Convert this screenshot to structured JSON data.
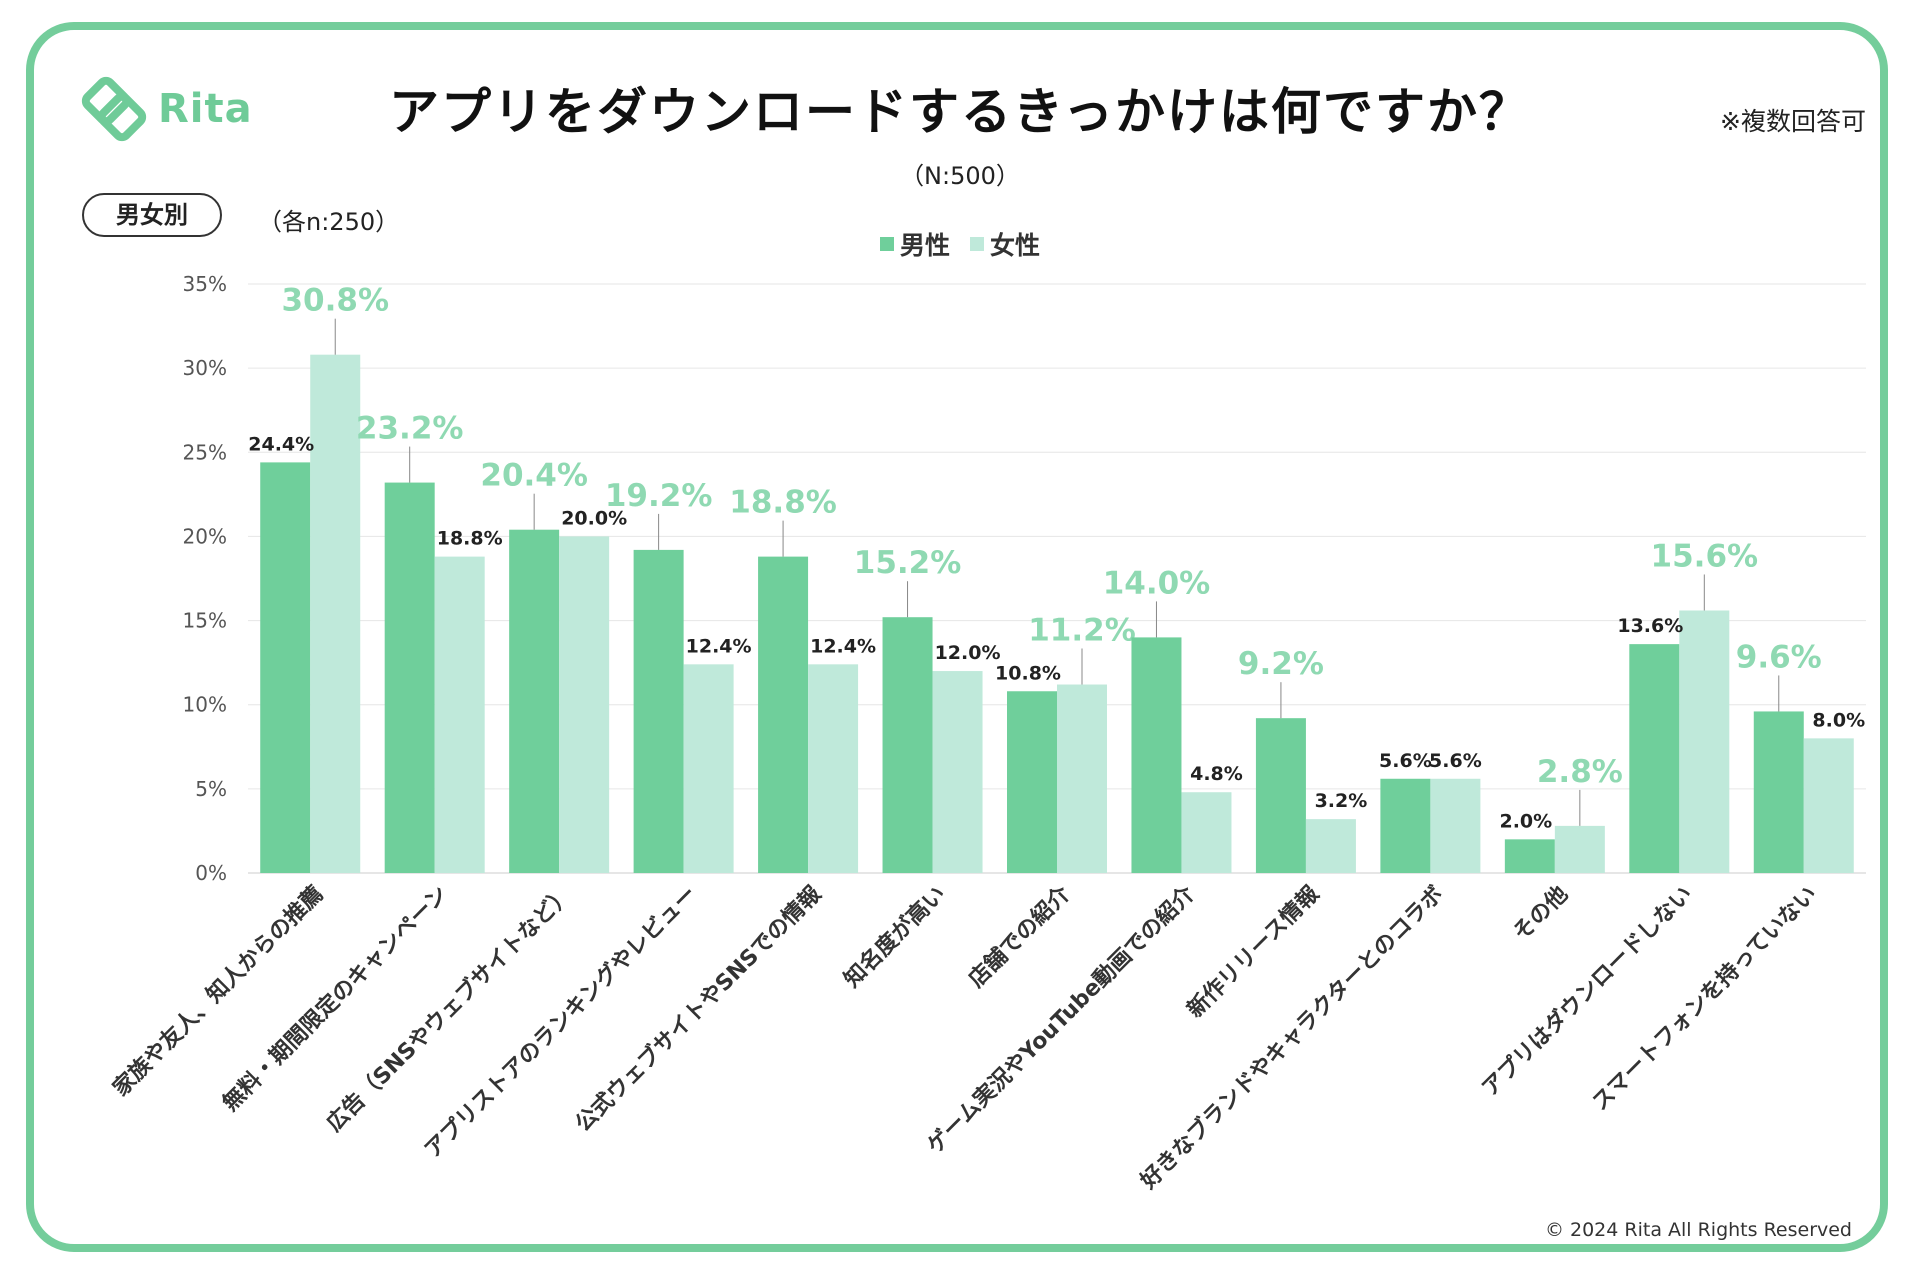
{
  "brand": {
    "name": "Rita",
    "color": "#6fcb98"
  },
  "header": {
    "title": "アプリをダウンロードするきっかけは何ですか？",
    "note": "※複数回答可",
    "subtitle": "（N:500）",
    "segment_label": "男女別",
    "segment_sample": "（各n:250）"
  },
  "footer": {
    "copyright": "© 2024 Rita All Rights Reserved"
  },
  "colors": {
    "male": "#6fcf9b",
    "female": "#bfe9da",
    "highlight_label": "#8fd9b2",
    "frame": "#74cd9b"
  },
  "chart_data": {
    "type": "bar",
    "title": "アプリをダウンロードするきっかけは何ですか？",
    "ylim": [
      0,
      35
    ],
    "yticks": [
      "0%",
      "5%",
      "10%",
      "15%",
      "20%",
      "25%",
      "30%",
      "35%"
    ],
    "grid": true,
    "legend_position": "top-center",
    "categories": [
      "家族や友人、知人からの推薦",
      "無料・期間限定のキャンペーン",
      "広告（SNSやウェブサイトなど）",
      "アプリストアのランキングやレビュー",
      "公式ウェブサイトやSNSでの情報",
      "知名度が高い",
      "店舗での紹介",
      "ゲーム実況やYouTube動画での紹介",
      "新作リリース情報",
      "好きなブランドやキャラクターとのコラボ",
      "その他",
      "アプリはダウンロードしない",
      "スマートフォンを持っていない"
    ],
    "series": [
      {
        "name": "男性",
        "values": [
          24.4,
          23.2,
          20.4,
          19.2,
          18.8,
          15.2,
          10.8,
          14.0,
          9.2,
          5.6,
          2.0,
          13.6,
          9.6
        ],
        "labels": [
          "24.4%",
          "23.2%",
          "20.4%",
          "19.2%",
          "18.8%",
          "15.2%",
          "10.8%",
          "14.0%",
          "9.2%",
          "5.6%",
          "2.0%",
          "13.6%",
          "9.6%"
        ]
      },
      {
        "name": "女性",
        "values": [
          30.8,
          18.8,
          20.0,
          12.4,
          12.4,
          12.0,
          11.2,
          4.8,
          3.2,
          5.6,
          2.8,
          15.6,
          8.0
        ],
        "labels": [
          "30.8%",
          "18.8%",
          "20.0%",
          "12.4%",
          "12.4%",
          "12.0%",
          "11.2%",
          "4.8%",
          "3.2%",
          "5.6%",
          "2.8%",
          "15.6%",
          "8.0%"
        ]
      }
    ]
  }
}
